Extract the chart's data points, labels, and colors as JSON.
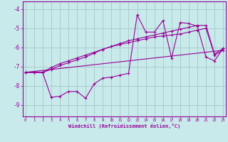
{
  "xlabel": "Windchill (Refroidissement éolien,°C)",
  "bg_color": "#c8eaea",
  "line_color": "#990099",
  "grid_color": "#aacccc",
  "xticks": [
    0,
    1,
    2,
    3,
    4,
    5,
    6,
    7,
    8,
    9,
    10,
    11,
    12,
    13,
    14,
    15,
    16,
    17,
    18,
    19,
    20,
    21,
    22,
    23
  ],
  "yticks": [
    -9,
    -8,
    -7,
    -6,
    -5,
    -4
  ],
  "xlim": [
    -0.3,
    23.3
  ],
  "ylim": [
    -9.6,
    -3.6
  ],
  "series": [
    {
      "x": [
        0,
        1,
        2,
        3,
        4,
        5,
        6,
        7,
        8,
        9,
        10,
        11,
        12,
        13,
        14,
        15,
        16,
        17,
        18,
        19,
        20,
        21,
        22,
        23
      ],
      "y": [
        -7.3,
        -7.3,
        -7.3,
        -7.15,
        -6.95,
        -6.8,
        -6.65,
        -6.5,
        -6.3,
        -6.1,
        -5.95,
        -5.8,
        -5.65,
        -5.55,
        -5.45,
        -5.35,
        -5.25,
        -5.15,
        -5.05,
        -4.95,
        -4.85,
        -4.85,
        -6.35,
        -6.05
      ],
      "marker": true
    },
    {
      "x": [
        0,
        1,
        2,
        3,
        4,
        5,
        6,
        7,
        8,
        9,
        10,
        11,
        12,
        13,
        14,
        15,
        16,
        17,
        18,
        19,
        20,
        21,
        22,
        23
      ],
      "y": [
        -7.3,
        -7.3,
        -7.3,
        -7.05,
        -6.85,
        -6.7,
        -6.55,
        -6.4,
        -6.25,
        -6.1,
        -5.95,
        -5.85,
        -5.75,
        -5.65,
        -5.55,
        -5.45,
        -5.4,
        -5.35,
        -5.3,
        -5.2,
        -5.1,
        -5.0,
        -6.4,
        -6.15
      ],
      "marker": true
    },
    {
      "x": [
        0,
        1,
        2,
        3,
        4,
        5,
        6,
        7,
        8,
        9,
        10,
        11,
        12,
        13,
        14,
        15,
        16,
        17,
        18,
        19,
        20,
        21,
        22,
        23
      ],
      "y": [
        -7.3,
        -7.3,
        -7.3,
        -8.6,
        -8.55,
        -8.3,
        -8.3,
        -8.65,
        -7.9,
        -7.6,
        -7.55,
        -7.45,
        -7.35,
        -4.3,
        -5.2,
        -5.2,
        -4.6,
        -6.55,
        -4.7,
        -4.75,
        -4.9,
        -6.5,
        -6.7,
        -6.05
      ],
      "marker": true
    },
    {
      "x": [
        0,
        23
      ],
      "y": [
        -7.3,
        -6.15
      ],
      "marker": false
    }
  ]
}
